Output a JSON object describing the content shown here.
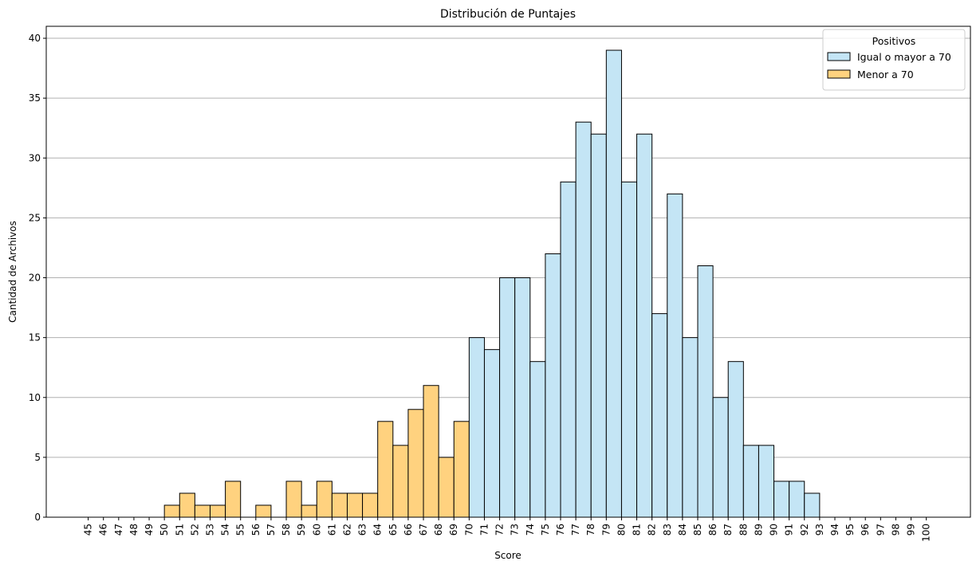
{
  "chart_data": {
    "type": "bar",
    "title": "Distribución de Puntajes",
    "xlabel": "Score",
    "ylabel": "Cantidad de Archivos",
    "ylim": [
      0,
      41
    ],
    "yticks": [
      0,
      5,
      10,
      15,
      20,
      25,
      30,
      35,
      40
    ],
    "grid": "y",
    "x_tick_labels": [
      "45",
      "46",
      "47",
      "48",
      "49",
      "50",
      "51",
      "52",
      "53",
      "54",
      "55",
      "56",
      "57",
      "58",
      "59",
      "60",
      "61",
      "62",
      "63",
      "64",
      "65",
      "66",
      "67",
      "68",
      "69",
      "70",
      "71",
      "72",
      "73",
      "74",
      "75",
      "76",
      "77",
      "78",
      "79",
      "80",
      "81",
      "82",
      "83",
      "84",
      "85",
      "86",
      "87",
      "88",
      "89",
      "90",
      "91",
      "92",
      "93",
      "94",
      "95",
      "96",
      "97",
      "98",
      "99",
      "100"
    ],
    "categories": [
      "45",
      "46",
      "47",
      "48",
      "49",
      "50",
      "51",
      "52",
      "53",
      "54",
      "55",
      "56",
      "57",
      "58",
      "59",
      "60",
      "61",
      "62",
      "63",
      "64",
      "65",
      "66",
      "67",
      "68",
      "69",
      "70",
      "71",
      "72",
      "73",
      "74",
      "75",
      "76",
      "77",
      "78",
      "79",
      "80",
      "81",
      "82",
      "83",
      "84",
      "85",
      "86",
      "87",
      "88",
      "89",
      "90",
      "91",
      "92",
      "93",
      "94",
      "95",
      "96",
      "97",
      "98",
      "99",
      "100"
    ],
    "values": [
      0,
      0,
      0,
      0,
      0,
      1,
      2,
      1,
      1,
      3,
      0,
      1,
      0,
      3,
      1,
      3,
      2,
      2,
      2,
      8,
      6,
      9,
      11,
      5,
      8,
      15,
      14,
      20,
      20,
      13,
      22,
      28,
      33,
      32,
      39,
      28,
      32,
      17,
      27,
      15,
      21,
      10,
      13,
      6,
      6,
      3,
      3,
      2,
      0,
      0,
      0,
      0,
      0,
      0,
      0,
      0
    ],
    "threshold": 70,
    "legend": {
      "title": "Positivos",
      "placement": "top-right",
      "entries": [
        {
          "label": "Igual o mayor a 70",
          "color": "#c4e5f5"
        },
        {
          "label": "Menor a 70",
          "color": "#ffd27f"
        }
      ]
    },
    "colors": {
      "high": "#c4e5f5",
      "low": "#ffd27f",
      "edge": "#000000",
      "grid": "#b0b0b0"
    }
  }
}
